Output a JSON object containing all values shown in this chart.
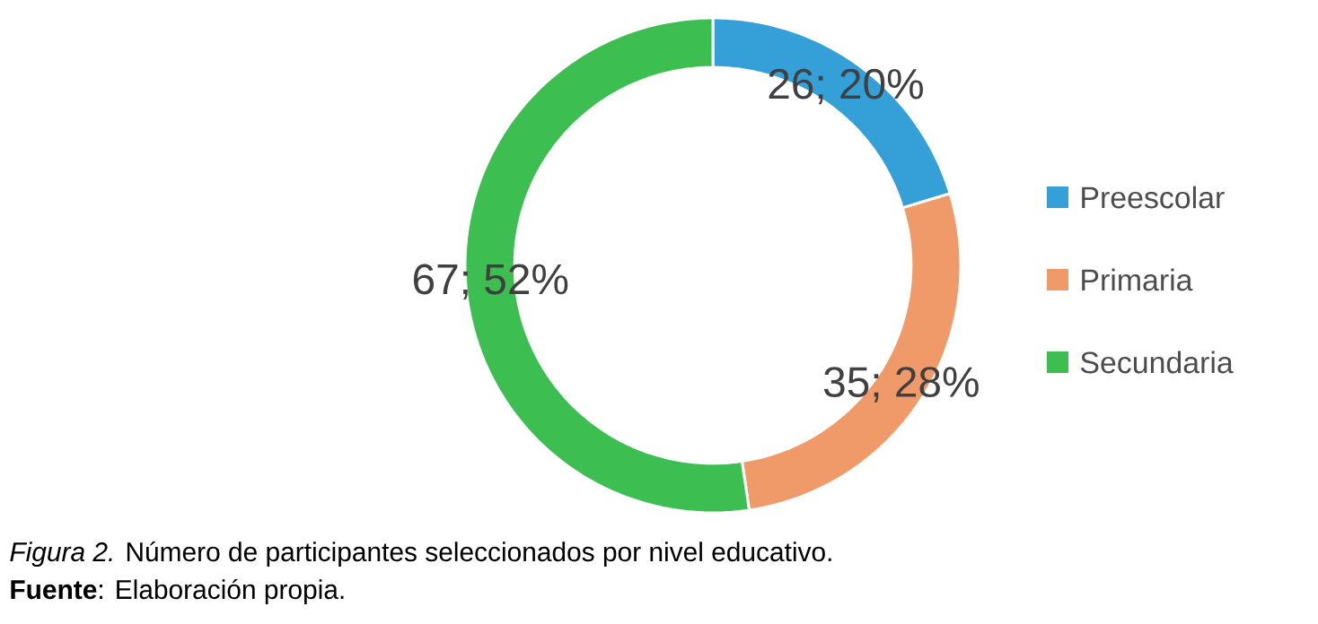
{
  "chart_data": {
    "type": "donut",
    "categories": [
      "Preescolar",
      "Primaria",
      "Secundaria"
    ],
    "values": [
      26,
      35,
      67
    ],
    "value_labels": [
      "26; 20%",
      "35; 28%",
      "67; 52%"
    ],
    "colors": [
      "#35a0d8",
      "#f09a6a",
      "#3cbf50"
    ],
    "legend": "right",
    "annotations": [
      "*Figura 2.* Número de participantes seleccionados por nivel educativo.",
      "**Fuente**: Elaboración propia."
    ]
  }
}
